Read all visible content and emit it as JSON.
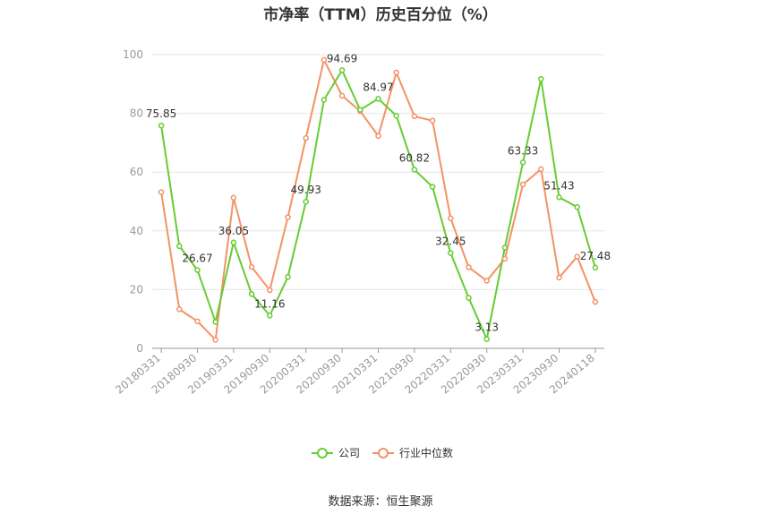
{
  "chart_data": {
    "type": "line",
    "title": "市净率（TTM）历史百分位（%）",
    "source": "数据来源：恒生聚源",
    "xlabel": "",
    "ylabel": "",
    "ylim": [
      0,
      100
    ],
    "yticks": [
      0,
      20,
      40,
      60,
      80,
      100
    ],
    "grid": true,
    "legend_position": "bottom",
    "x": [
      "20180331",
      "20180630",
      "20180930",
      "20181231",
      "20190331",
      "20190630",
      "20190930",
      "20191231",
      "20200331",
      "20200630",
      "20200930",
      "20201231",
      "20210331",
      "20210630",
      "20210930",
      "20211231",
      "20220331",
      "20220630",
      "20220930",
      "20221231",
      "20230331",
      "20230630",
      "20230930",
      "20231231",
      "20240118"
    ],
    "x_tick_labels": [
      "20180331",
      "20180930",
      "20190331",
      "20190930",
      "20200331",
      "20200930",
      "20210331",
      "20210930",
      "20220331",
      "20220930",
      "20230331",
      "20230930",
      "20240118"
    ],
    "series": [
      {
        "name": "公司",
        "color": "#66cc33",
        "values": [
          75.85,
          34.8,
          26.67,
          9.0,
          36.05,
          18.5,
          11.16,
          24.3,
          49.93,
          84.6,
          94.69,
          81.2,
          84.97,
          79.2,
          60.82,
          55.0,
          32.45,
          17.2,
          3.13,
          34.3,
          63.33,
          91.7,
          51.43,
          48.1,
          27.48
        ],
        "labels": {
          "0": "75.85",
          "2": "26.67",
          "4": "36.05",
          "6": "11.16",
          "8": "49.93",
          "10": "94.69",
          "12": "84.97",
          "14": "60.82",
          "16": "32.45",
          "18": "3.13",
          "20": "63.33",
          "22": "51.43",
          "24": "27.48"
        }
      },
      {
        "name": "行业中位数",
        "color": "#f39266",
        "values": [
          53.2,
          13.3,
          9.2,
          2.9,
          51.3,
          27.7,
          19.8,
          44.6,
          71.6,
          98.2,
          86.0,
          80.8,
          72.3,
          93.9,
          79.0,
          77.5,
          44.3,
          27.6,
          23.0,
          30.5,
          55.8,
          61.0,
          24.1,
          31.2,
          15.8
        ]
      }
    ]
  }
}
